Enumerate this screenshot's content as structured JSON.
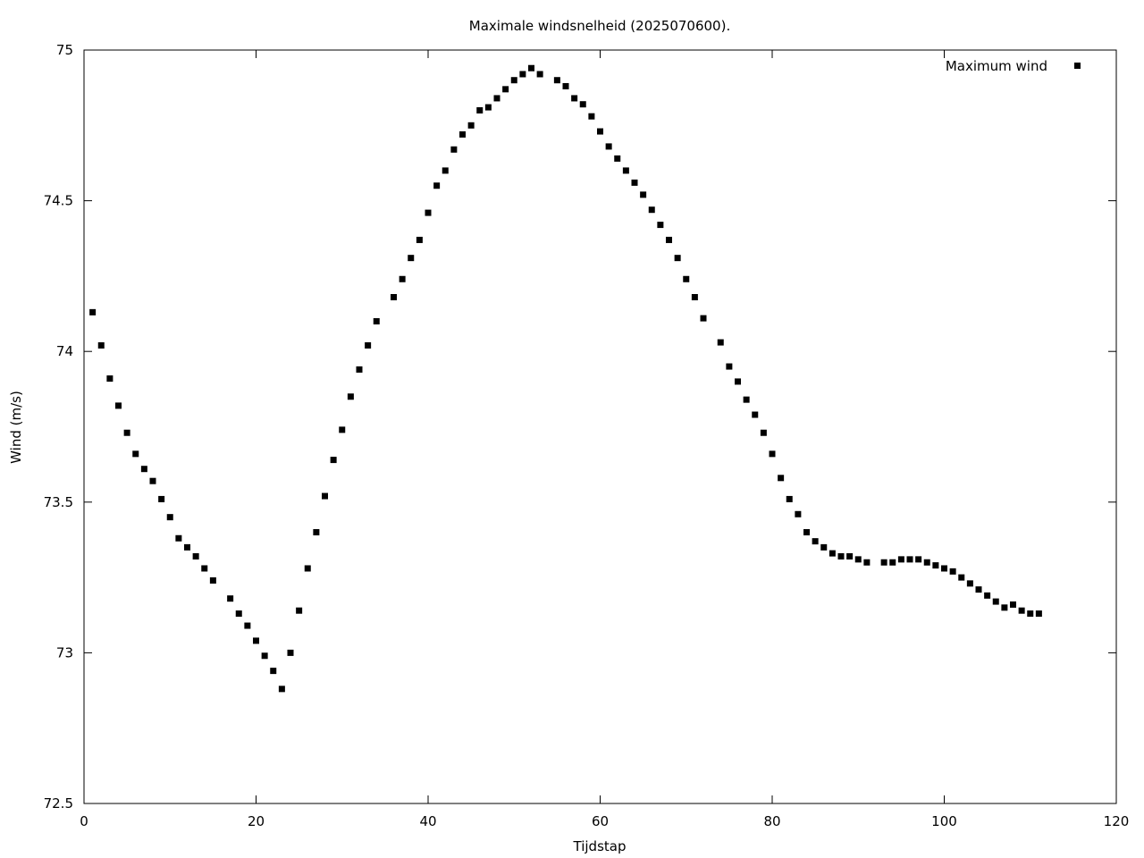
{
  "chart_data": {
    "type": "scatter",
    "title": "Maximale windsnelheid (2025070600).",
    "xlabel": "Tijdstap",
    "ylabel": "Wind (m/s)",
    "xlim": [
      0,
      120
    ],
    "ylim": [
      72.5,
      75
    ],
    "xticks": [
      0,
      20,
      40,
      60,
      80,
      100,
      120
    ],
    "yticks": [
      72.5,
      73,
      73.5,
      74,
      74.5,
      75
    ],
    "grid": false,
    "legend_position": "top-right",
    "marker_color": "#000000",
    "series": [
      {
        "name": "Maximum wind",
        "x": [
          1,
          2,
          3,
          4,
          5,
          6,
          7,
          8,
          9,
          10,
          11,
          12,
          13,
          14,
          15,
          17,
          18,
          19,
          20,
          21,
          22,
          23,
          24,
          25,
          26,
          27,
          28,
          29,
          30,
          31,
          32,
          33,
          34,
          36,
          37,
          38,
          39,
          40,
          41,
          42,
          43,
          44,
          45,
          46,
          47,
          48,
          49,
          50,
          51,
          52,
          53,
          55,
          56,
          57,
          58,
          59,
          60,
          61,
          62,
          63,
          64,
          65,
          66,
          67,
          68,
          69,
          70,
          71,
          72,
          74,
          75,
          76,
          77,
          78,
          79,
          80,
          81,
          82,
          83,
          84,
          85,
          86,
          87,
          88,
          89,
          90,
          91,
          93,
          94,
          95,
          96,
          97,
          98,
          99,
          100,
          101,
          102,
          103,
          104,
          105,
          106,
          107,
          108,
          109,
          110,
          111
        ],
        "y": [
          74.13,
          74.02,
          73.91,
          73.82,
          73.73,
          73.66,
          73.61,
          73.57,
          73.51,
          73.45,
          73.38,
          73.35,
          73.32,
          73.28,
          73.24,
          73.18,
          73.13,
          73.09,
          73.04,
          72.99,
          72.94,
          72.88,
          73.0,
          73.14,
          73.28,
          73.4,
          73.52,
          73.64,
          73.74,
          73.85,
          73.94,
          74.02,
          74.1,
          74.18,
          74.24,
          74.31,
          74.37,
          74.46,
          74.55,
          74.6,
          74.67,
          74.72,
          74.75,
          74.8,
          74.81,
          74.84,
          74.87,
          74.9,
          74.92,
          74.94,
          74.92,
          74.9,
          74.88,
          74.84,
          74.82,
          74.78,
          74.73,
          74.68,
          74.64,
          74.6,
          74.56,
          74.52,
          74.47,
          74.42,
          74.37,
          74.31,
          74.24,
          74.18,
          74.11,
          74.03,
          73.95,
          73.9,
          73.84,
          73.79,
          73.73,
          73.66,
          73.58,
          73.51,
          73.46,
          73.4,
          73.37,
          73.35,
          73.33,
          73.32,
          73.32,
          73.31,
          73.3,
          73.3,
          73.3,
          73.31,
          73.31,
          73.31,
          73.3,
          73.29,
          73.28,
          73.27,
          73.25,
          73.23,
          73.21,
          73.19,
          73.17,
          73.15,
          73.16,
          73.14,
          73.13,
          73.13
        ]
      }
    ]
  }
}
